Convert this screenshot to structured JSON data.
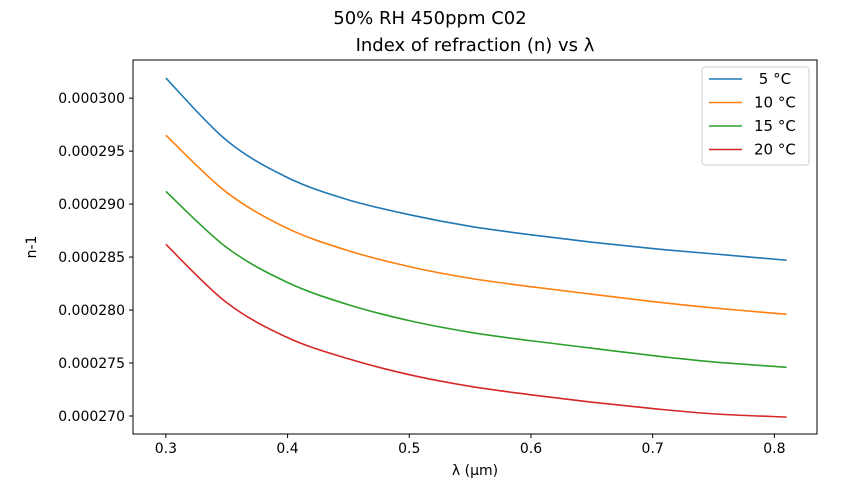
{
  "chart_data": {
    "type": "line",
    "title": "50% RH 450ppm C02",
    "subtitle": "Index of refraction (n) vs λ",
    "xlabel": "λ (μm)",
    "ylabel": "n-1",
    "xlim": [
      0.273,
      0.835
    ],
    "ylim": [
      0.0002683,
      0.0003036
    ],
    "xticks": [
      {
        "value": 0.3,
        "label": "0.3"
      },
      {
        "value": 0.4,
        "label": "0.4"
      },
      {
        "value": 0.5,
        "label": "0.5"
      },
      {
        "value": 0.6,
        "label": "0.6"
      },
      {
        "value": 0.7,
        "label": "0.7"
      },
      {
        "value": 0.8,
        "label": "0.8"
      }
    ],
    "yticks": [
      {
        "value": 0.00027,
        "label": "0.000270"
      },
      {
        "value": 0.000275,
        "label": "0.000275"
      },
      {
        "value": 0.00028,
        "label": "0.000280"
      },
      {
        "value": 0.000285,
        "label": "0.000285"
      },
      {
        "value": 0.00029,
        "label": "0.000290"
      },
      {
        "value": 0.000295,
        "label": "0.000295"
      },
      {
        "value": 0.0003,
        "label": "0.000300"
      }
    ],
    "grid": false,
    "legend_position": "top-right",
    "x": [
      0.3,
      0.35,
      0.4,
      0.45,
      0.5,
      0.55,
      0.6,
      0.65,
      0.7,
      0.75,
      0.81
    ],
    "series": [
      {
        "name": " 5 °C",
        "color": "#1f77b4",
        "values": [
          0.0003019,
          0.000296,
          0.0002925,
          0.0002904,
          0.000289,
          0.0002879,
          0.0002871,
          0.0002864,
          0.0002858,
          0.0002853,
          0.0002847
        ]
      },
      {
        "name": "10 °C",
        "color": "#ff7f0e",
        "values": [
          0.0002965,
          0.0002911,
          0.0002877,
          0.0002856,
          0.0002841,
          0.000283,
          0.0002822,
          0.0002815,
          0.0002808,
          0.0002802,
          0.0002796
        ]
      },
      {
        "name": "15 °C",
        "color": "#2ca02c",
        "values": [
          0.0002912,
          0.0002859,
          0.0002826,
          0.0002805,
          0.000279,
          0.0002779,
          0.0002771,
          0.0002764,
          0.0002757,
          0.0002751,
          0.0002746
        ]
      },
      {
        "name": "20 °C",
        "color": "#d62728",
        "values": [
          0.0002862,
          0.0002807,
          0.0002774,
          0.0002754,
          0.0002739,
          0.0002728,
          0.000272,
          0.0002713,
          0.0002707,
          0.0002702,
          0.0002699
        ]
      }
    ]
  }
}
